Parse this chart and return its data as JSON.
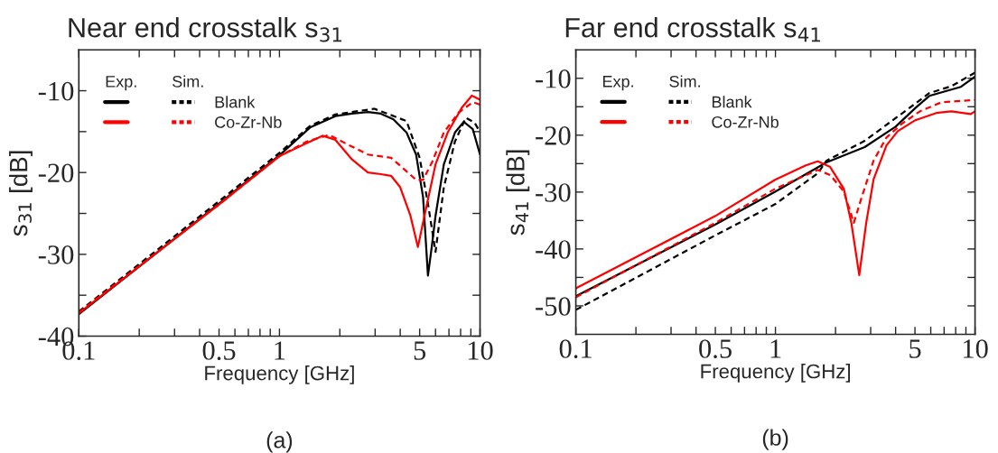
{
  "chart_data": [
    {
      "type": "line",
      "title": "Near end crosstalk s$_{31}$",
      "xlabel": "Frequency [GHz]",
      "ylabel": "s$_{31}$ [dB]",
      "log": "x",
      "xlim": [
        0.1,
        10
      ],
      "ylim": [
        -40,
        -5
      ],
      "xticks": [
        0.1,
        {
          "value": 0.2,
          "label": null
        },
        {
          "value": 0.3,
          "label": null
        },
        {
          "value": 0.4,
          "label": null
        },
        0.5,
        {
          "value": 0.6,
          "label": null
        },
        {
          "value": 0.7,
          "label": null
        },
        {
          "value": 0.8,
          "label": null
        },
        {
          "value": 0.9,
          "label": null
        },
        1,
        {
          "value": 2,
          "label": null
        },
        {
          "value": 3,
          "label": null
        },
        {
          "value": 4,
          "label": null
        },
        5,
        {
          "value": 6,
          "label": null
        },
        {
          "value": 7,
          "label": null
        },
        {
          "value": 8,
          "label": null
        },
        {
          "value": 9,
          "label": null
        },
        10
      ],
      "yticks": [
        -40,
        {
          "value": -35,
          "label": null
        },
        -30,
        {
          "value": -25,
          "label": null
        },
        -20,
        {
          "value": -15,
          "label": null
        },
        -10
      ],
      "grid": false,
      "legend": "top left",
      "annotations": [
        "Exp.",
        "Sim.",
        "(a)"
      ],
      "series": [
        {
          "color": "#000000",
          "line_style": "solid",
          "x": [
            0.1,
            0.5,
            1,
            1.42,
            1.9,
            2.3,
            2.76,
            3.2,
            3.7,
            4.3,
            4.8,
            5.2,
            5.5,
            5.75,
            6.0,
            6.6,
            7.5,
            8.3,
            9.2,
            10
          ],
          "values": [
            -37.3,
            -23.8,
            -17.9,
            -14.5,
            -13.1,
            -12.8,
            -12.6,
            -12.8,
            -13.5,
            -15.1,
            -17.8,
            -23.0,
            -32.6,
            -29.0,
            -25.3,
            -19.0,
            -15.1,
            -13.8,
            -14.7,
            -17.8
          ]
        },
        {
          "name": "Blank",
          "color": "#000000",
          "line_style": "dashed",
          "x": [
            0.1,
            0.5,
            1,
            1.42,
            1.9,
            2.97,
            4.3,
            5.0,
            5.5,
            6.0,
            6.6,
            7.5,
            8.5,
            9.4,
            10
          ],
          "values": [
            -37.0,
            -23.5,
            -17.6,
            -14.3,
            -12.9,
            -12.2,
            -13.7,
            -18.2,
            -23.8,
            -29.7,
            -21.8,
            -16.2,
            -13.3,
            -13.9,
            -15.1
          ]
        },
        {
          "color": "#ff0000",
          "line_style": "solid",
          "x": [
            0.1,
            0.5,
            1,
            1.37,
            1.64,
            1.9,
            2.3,
            2.76,
            3.2,
            3.6,
            4.0,
            4.5,
            4.9,
            5.4,
            6.0,
            6.9,
            8.1,
            9.1,
            10
          ],
          "values": [
            -37.2,
            -23.9,
            -18.0,
            -16.4,
            -15.5,
            -16.0,
            -18.4,
            -20.0,
            -20.2,
            -20.4,
            -21.8,
            -25.3,
            -29.1,
            -24.2,
            -19.0,
            -15.1,
            -12.1,
            -10.6,
            -11.1
          ]
        },
        {
          "name": "Co-Zr-Nb",
          "color": "#ff0000",
          "line_style": "dashed",
          "x": [
            0.1,
            0.5,
            1,
            1.37,
            1.77,
            2.2,
            2.76,
            3.6,
            4.1,
            4.8,
            5.2,
            5.8,
            6.6,
            7.8,
            9.2,
            10
          ],
          "values": [
            -37.1,
            -23.9,
            -18.0,
            -16.2,
            -15.4,
            -16.6,
            -17.8,
            -18.2,
            -19.4,
            -20.9,
            -20.9,
            -18.6,
            -15.1,
            -12.7,
            -11.4,
            -11.7
          ]
        }
      ]
    },
    {
      "type": "line",
      "title": "Far end crosstalk s$_{41}$",
      "xlabel": "Frequency [GHz]",
      "ylabel": "s$_{41}$ [dB]",
      "log": "x",
      "xlim": [
        0.1,
        10
      ],
      "ylim": [
        -55,
        -5
      ],
      "xticks": [
        0.1,
        {
          "value": 0.2,
          "label": null
        },
        {
          "value": 0.3,
          "label": null
        },
        {
          "value": 0.4,
          "label": null
        },
        0.5,
        {
          "value": 0.6,
          "label": null
        },
        {
          "value": 0.7,
          "label": null
        },
        {
          "value": 0.8,
          "label": null
        },
        {
          "value": 0.9,
          "label": null
        },
        1,
        {
          "value": 2,
          "label": null
        },
        {
          "value": 3,
          "label": null
        },
        {
          "value": 4,
          "label": null
        },
        5,
        {
          "value": 6,
          "label": null
        },
        {
          "value": 7,
          "label": null
        },
        {
          "value": 8,
          "label": null
        },
        {
          "value": 9,
          "label": null
        },
        10
      ],
      "yticks": [
        -50,
        {
          "value": -45,
          "label": null
        },
        -40,
        {
          "value": -35,
          "label": null
        },
        -30,
        {
          "value": -25,
          "label": null
        },
        -20,
        {
          "value": -15,
          "label": null
        },
        -10
      ],
      "grid": false,
      "legend": "top left",
      "annotations": [
        "Exp.",
        "Sim.",
        "(b)"
      ],
      "series": [
        {
          "color": "#000000",
          "line_style": "solid",
          "x": [
            0.1,
            0.5,
            1,
            1.8,
            2.8,
            4.0,
            5.0,
            5.9,
            7.4,
            8.5,
            10
          ],
          "values": [
            -48.3,
            -35.7,
            -29.9,
            -24.8,
            -22.1,
            -18.5,
            -15.3,
            -13.1,
            -12.1,
            -11.5,
            -9.7
          ]
        },
        {
          "name": "Blank",
          "color": "#000000",
          "line_style": "dashed",
          "x": [
            0.1,
            0.5,
            1,
            1.63,
            1.8,
            2.8,
            4.0,
            5.0,
            5.9,
            7.6,
            10
          ],
          "values": [
            -50.7,
            -37.6,
            -32.1,
            -26.7,
            -24.5,
            -21.0,
            -17.0,
            -14.5,
            -12.6,
            -11.4,
            -9.0
          ]
        },
        {
          "color": "#ff0000",
          "line_style": "solid",
          "x": [
            0.1,
            0.5,
            1,
            1.42,
            1.63,
            1.88,
            2.2,
            2.4,
            2.63,
            2.85,
            3.1,
            3.6,
            4.1,
            5.0,
            6.4,
            7.6,
            9.5,
            10
          ],
          "values": [
            -46.9,
            -34.2,
            -27.8,
            -25.3,
            -24.6,
            -25.6,
            -29.4,
            -35.4,
            -44.6,
            -35.4,
            -27.8,
            -21.8,
            -19.3,
            -17.4,
            -16.1,
            -15.8,
            -16.3,
            -15.8
          ]
        },
        {
          "name": "Co-Zr-Nb",
          "color": "#ff0000",
          "line_style": "dashed",
          "x": [
            0.1,
            0.5,
            1,
            1.63,
            1.88,
            2.2,
            2.47,
            2.7,
            3.1,
            3.6,
            4.3,
            5.3,
            6.8,
            10
          ],
          "values": [
            -48.5,
            -35.4,
            -29.4,
            -26.1,
            -27.0,
            -29.9,
            -35.4,
            -31.0,
            -24.5,
            -20.4,
            -18.0,
            -15.8,
            -14.2,
            -13.8
          ]
        }
      ]
    }
  ]
}
